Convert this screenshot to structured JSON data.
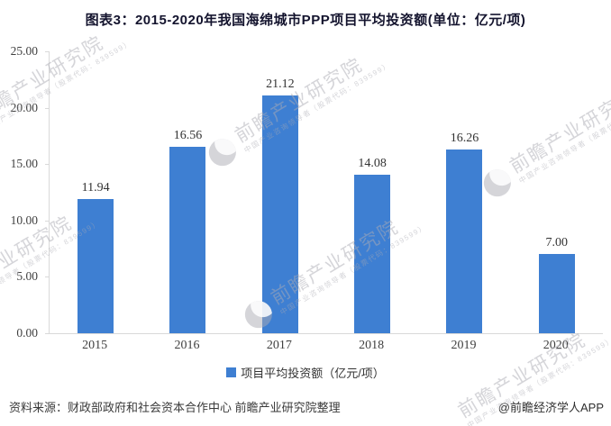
{
  "title": "图表3：2015-2020年我国海绵城市PPP项目平均投资额(单位：亿元/项)",
  "chart_data": {
    "type": "bar",
    "categories": [
      "2015",
      "2016",
      "2017",
      "2018",
      "2019",
      "2020"
    ],
    "values": [
      11.94,
      16.56,
      21.12,
      14.08,
      16.26,
      7.0
    ],
    "value_labels": [
      "11.94",
      "16.56",
      "21.12",
      "14.08",
      "16.26",
      "7.00"
    ],
    "series_name": "项目平均投资额（亿元/项）",
    "title": "图表3：2015-2020年我国海绵城市PPP项目平均投资额(单位：亿元/项)",
    "xlabel": "",
    "ylabel": "",
    "ylim": [
      0,
      25
    ],
    "y_ticks": [
      "25.00",
      "20.00",
      "15.00",
      "10.00",
      "5.00",
      "0.00"
    ],
    "grid": false,
    "legend_position": "bottom",
    "bar_color": "#3e7fd2"
  },
  "legend": {
    "label": "项目平均投资额（亿元/项）",
    "swatch_color": "#3e7fd2"
  },
  "footer": {
    "source": "资料来源：财政部政府和社会资本合作中心 前瞻产业研究院整理",
    "credit": "@前瞻经济学人APP"
  },
  "watermark": {
    "text": "前瞻产业研究院",
    "subtext": "中国产业咨询领导者（股票代码：839599）"
  },
  "colors": {
    "bar": "#3e7fd2",
    "axis_line": "#d9d9d9",
    "title_text": "#14142e",
    "tick_text": "#404040",
    "value_text": "#333333",
    "watermark": "#acacb4"
  }
}
